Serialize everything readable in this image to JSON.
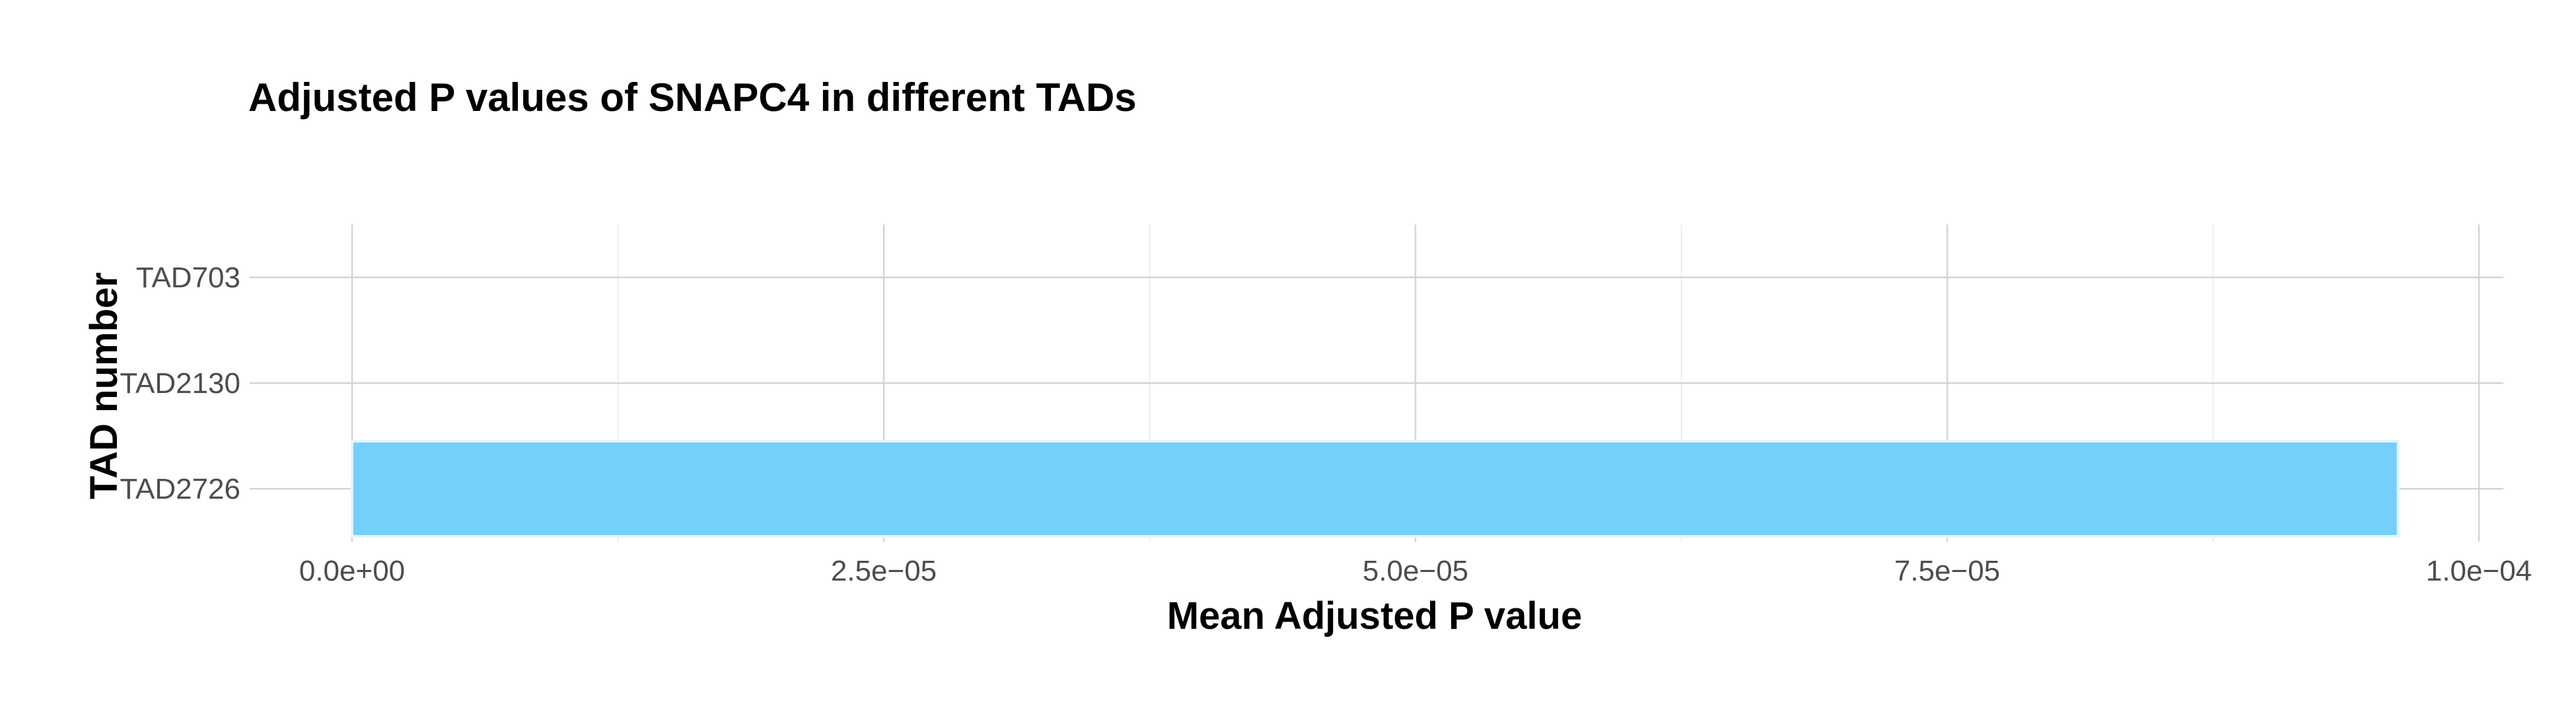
{
  "chart_data": {
    "type": "bar",
    "orientation": "horizontal",
    "title": "Adjusted P values of SNAPC4 in different TADs",
    "xlabel": "Mean Adjusted P value",
    "ylabel": "TAD number",
    "categories": [
      "TAD703",
      "TAD2130",
      "TAD2726"
    ],
    "values": [
      0,
      0,
      9.62e-05
    ],
    "xlim": [
      0,
      0.0001
    ],
    "xticks": [
      0,
      2.5e-05,
      5e-05,
      7.5e-05,
      0.0001
    ],
    "xtick_labels": [
      "0.0e+00",
      "2.5e−05",
      "5.0e−05",
      "7.5e−05",
      "1.0e−04"
    ],
    "bar_color": "#74CFFB",
    "bar_outline": "#E3F5FE",
    "grid": true,
    "legend": "none"
  }
}
